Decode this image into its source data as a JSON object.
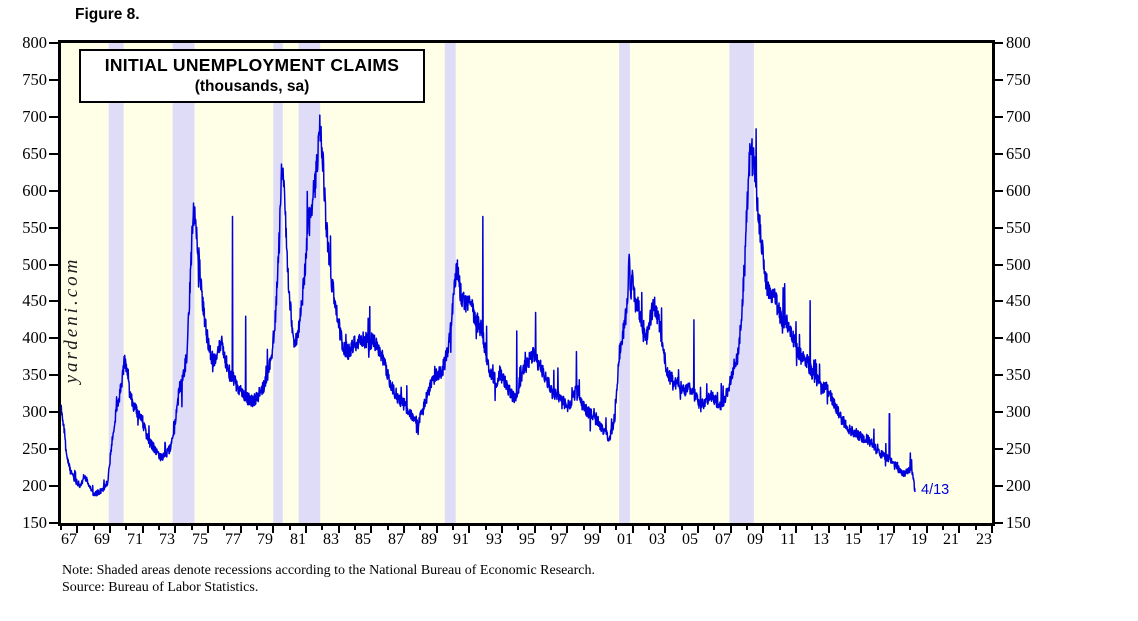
{
  "figure_label": "Figure 8.",
  "watermark": "yardeni.com",
  "notes": {
    "line1": "Note: Shaded areas denote recessions according to the National Bureau of Economic Research.",
    "line2": "Source: Bureau of Labor Statistics."
  },
  "colors": {
    "line": "#0000dc",
    "recession_band": "#dedcf6",
    "plot_background": "#ffffe7",
    "frame": "#000000",
    "text": "#000000",
    "end_label": "#0000dc"
  },
  "chart_data": {
    "type": "line",
    "title": "INITIAL UNEMPLOYMENT CLAIMS",
    "subtitle": "(thousands, sa)",
    "series_name": "Initial unemployment claims, weekly, thousands, seasonally adjusted",
    "x_range": [
      1967.0,
      2024.0
    ],
    "y_range": [
      150,
      800
    ],
    "y_ticks": [
      150,
      200,
      250,
      300,
      350,
      400,
      450,
      500,
      550,
      600,
      650,
      700,
      750,
      800
    ],
    "x_tick_labels": [
      "67",
      "69",
      "71",
      "73",
      "75",
      "77",
      "79",
      "81",
      "83",
      "85",
      "87",
      "89",
      "91",
      "93",
      "95",
      "97",
      "99",
      "01",
      "03",
      "05",
      "07",
      "09",
      "11",
      "13",
      "15",
      "17",
      "19",
      "21",
      "23"
    ],
    "x_tick_label_start_year": 1967,
    "grid": false,
    "legend": "none",
    "recessions": [
      [
        1969.92,
        1970.83
      ],
      [
        1973.83,
        1975.17
      ],
      [
        1980.0,
        1980.58
      ],
      [
        1981.55,
        1982.87
      ],
      [
        1990.5,
        1991.17
      ],
      [
        2001.17,
        2001.83
      ],
      [
        2007.92,
        2009.42
      ]
    ],
    "anchors": [
      [
        1967.0,
        310
      ],
      [
        1967.15,
        285
      ],
      [
        1967.35,
        240
      ],
      [
        1967.6,
        218
      ],
      [
        1967.9,
        207
      ],
      [
        1968.2,
        200
      ],
      [
        1968.45,
        215
      ],
      [
        1968.7,
        200
      ],
      [
        1969.0,
        188
      ],
      [
        1969.3,
        192
      ],
      [
        1969.6,
        196
      ],
      [
        1969.85,
        205
      ],
      [
        1970.1,
        255
      ],
      [
        1970.4,
        305
      ],
      [
        1970.65,
        330
      ],
      [
        1970.9,
        372
      ],
      [
        1971.05,
        360
      ],
      [
        1971.3,
        318
      ],
      [
        1971.6,
        302
      ],
      [
        1971.9,
        292
      ],
      [
        1972.2,
        272
      ],
      [
        1972.5,
        258
      ],
      [
        1972.8,
        248
      ],
      [
        1973.1,
        238
      ],
      [
        1973.4,
        242
      ],
      [
        1973.7,
        252
      ],
      [
        1973.95,
        278
      ],
      [
        1974.2,
        330
      ],
      [
        1974.45,
        342
      ],
      [
        1974.7,
        378
      ],
      [
        1974.9,
        470
      ],
      [
        1975.08,
        572
      ],
      [
        1975.2,
        560
      ],
      [
        1975.35,
        535
      ],
      [
        1975.55,
        478
      ],
      [
        1975.75,
        432
      ],
      [
        1975.95,
        402
      ],
      [
        1976.15,
        378
      ],
      [
        1976.4,
        368
      ],
      [
        1976.6,
        382
      ],
      [
        1976.85,
        392
      ],
      [
        1977.1,
        368
      ],
      [
        1977.35,
        352
      ],
      [
        1977.6,
        342
      ],
      [
        1977.9,
        332
      ],
      [
        1978.15,
        322
      ],
      [
        1978.45,
        318
      ],
      [
        1978.75,
        315
      ],
      [
        1979.05,
        322
      ],
      [
        1979.35,
        332
      ],
      [
        1979.65,
        352
      ],
      [
        1979.9,
        378
      ],
      [
        1980.1,
        420
      ],
      [
        1980.3,
        500
      ],
      [
        1980.5,
        620
      ],
      [
        1980.58,
        635
      ],
      [
        1980.7,
        592
      ],
      [
        1980.85,
        505
      ],
      [
        1981.0,
        452
      ],
      [
        1981.2,
        402
      ],
      [
        1981.35,
        393
      ],
      [
        1981.55,
        415
      ],
      [
        1981.75,
        452
      ],
      [
        1981.95,
        492
      ],
      [
        1982.15,
        558
      ],
      [
        1982.35,
        582
      ],
      [
        1982.55,
        608
      ],
      [
        1982.7,
        642
      ],
      [
        1982.82,
        688
      ],
      [
        1982.92,
        672
      ],
      [
        1983.05,
        635
      ],
      [
        1983.2,
        565
      ],
      [
        1983.4,
        512
      ],
      [
        1983.6,
        472
      ],
      [
        1983.8,
        448
      ],
      [
        1984.05,
        412
      ],
      [
        1984.3,
        388
      ],
      [
        1984.6,
        382
      ],
      [
        1984.9,
        392
      ],
      [
        1985.2,
        396
      ],
      [
        1985.5,
        400
      ],
      [
        1985.8,
        394
      ],
      [
        1986.1,
        398
      ],
      [
        1986.4,
        386
      ],
      [
        1986.7,
        374
      ],
      [
        1987.0,
        350
      ],
      [
        1987.3,
        331
      ],
      [
        1987.6,
        321
      ],
      [
        1987.9,
        314
      ],
      [
        1988.2,
        304
      ],
      [
        1988.5,
        295
      ],
      [
        1988.85,
        284
      ],
      [
        1989.15,
        302
      ],
      [
        1989.45,
        326
      ],
      [
        1989.75,
        341
      ],
      [
        1990.05,
        351
      ],
      [
        1990.35,
        357
      ],
      [
        1990.55,
        372
      ],
      [
        1990.75,
        397
      ],
      [
        1990.95,
        432
      ],
      [
        1991.1,
        468
      ],
      [
        1991.25,
        498
      ],
      [
        1991.45,
        462
      ],
      [
        1991.7,
        448
      ],
      [
        1991.95,
        450
      ],
      [
        1992.2,
        438
      ],
      [
        1992.45,
        424
      ],
      [
        1992.7,
        414
      ],
      [
        1992.95,
        388
      ],
      [
        1993.15,
        364
      ],
      [
        1993.4,
        349
      ],
      [
        1993.65,
        341
      ],
      [
        1993.9,
        351
      ],
      [
        1994.2,
        339
      ],
      [
        1994.5,
        326
      ],
      [
        1994.8,
        321
      ],
      [
        1995.1,
        341
      ],
      [
        1995.4,
        361
      ],
      [
        1995.7,
        371
      ],
      [
        1995.95,
        379
      ],
      [
        1996.2,
        366
      ],
      [
        1996.5,
        356
      ],
      [
        1996.8,
        341
      ],
      [
        1997.1,
        326
      ],
      [
        1997.4,
        321
      ],
      [
        1997.7,
        316
      ],
      [
        1998.0,
        307
      ],
      [
        1998.3,
        317
      ],
      [
        1998.6,
        331
      ],
      [
        1998.9,
        311
      ],
      [
        1999.2,
        301
      ],
      [
        1999.5,
        296
      ],
      [
        1999.8,
        291
      ],
      [
        2000.1,
        278
      ],
      [
        2000.35,
        272
      ],
      [
        2000.55,
        264
      ],
      [
        2000.8,
        282
      ],
      [
        2001.0,
        322
      ],
      [
        2001.2,
        382
      ],
      [
        2001.45,
        412
      ],
      [
        2001.65,
        442
      ],
      [
        2001.78,
        508
      ],
      [
        2001.88,
        458
      ],
      [
        2002.0,
        488
      ],
      [
        2002.15,
        448
      ],
      [
        2002.35,
        442
      ],
      [
        2002.6,
        416
      ],
      [
        2002.85,
        402
      ],
      [
        2003.1,
        428
      ],
      [
        2003.3,
        448
      ],
      [
        2003.55,
        428
      ],
      [
        2003.8,
        398
      ],
      [
        2004.05,
        362
      ],
      [
        2004.3,
        347
      ],
      [
        2004.6,
        341
      ],
      [
        2004.9,
        336
      ],
      [
        2005.2,
        331
      ],
      [
        2005.5,
        332
      ],
      [
        2005.85,
        322
      ],
      [
        2006.15,
        308
      ],
      [
        2006.45,
        312
      ],
      [
        2006.75,
        321
      ],
      [
        2007.05,
        318
      ],
      [
        2007.35,
        309
      ],
      [
        2007.65,
        319
      ],
      [
        2007.95,
        341
      ],
      [
        2008.2,
        362
      ],
      [
        2008.45,
        378
      ],
      [
        2008.65,
        425
      ],
      [
        2008.85,
        488
      ],
      [
        2009.0,
        582
      ],
      [
        2009.15,
        638
      ],
      [
        2009.25,
        658
      ],
      [
        2009.4,
        648
      ],
      [
        2009.55,
        612
      ],
      [
        2009.75,
        558
      ],
      [
        2009.95,
        518
      ],
      [
        2010.15,
        478
      ],
      [
        2010.4,
        464
      ],
      [
        2010.65,
        459
      ],
      [
        2010.9,
        442
      ],
      [
        2011.15,
        418
      ],
      [
        2011.4,
        421
      ],
      [
        2011.65,
        413
      ],
      [
        2011.9,
        399
      ],
      [
        2012.15,
        379
      ],
      [
        2012.45,
        373
      ],
      [
        2012.75,
        366
      ],
      [
        2013.0,
        352
      ],
      [
        2013.3,
        344
      ],
      [
        2013.6,
        331
      ],
      [
        2013.9,
        333
      ],
      [
        2014.2,
        319
      ],
      [
        2014.5,
        304
      ],
      [
        2014.8,
        292
      ],
      [
        2015.1,
        281
      ],
      [
        2015.4,
        274
      ],
      [
        2015.7,
        271
      ],
      [
        2016.0,
        266
      ],
      [
        2016.35,
        264
      ],
      [
        2016.7,
        256
      ],
      [
        2017.0,
        246
      ],
      [
        2017.35,
        241
      ],
      [
        2017.7,
        238
      ],
      [
        2018.0,
        231
      ],
      [
        2018.3,
        222
      ],
      [
        2018.6,
        216
      ],
      [
        2018.9,
        221
      ],
      [
        2019.05,
        226
      ],
      [
        2019.18,
        212
      ],
      [
        2019.28,
        192
      ]
    ],
    "spikes": [
      [
        1977.5,
        565
      ],
      [
        1978.3,
        430
      ],
      [
        1985.9,
        443
      ],
      [
        1992.82,
        565
      ],
      [
        1994.9,
        410
      ],
      [
        1996.05,
        435
      ],
      [
        1998.55,
        382
      ],
      [
        2005.75,
        425
      ],
      [
        2011.3,
        474
      ],
      [
        2012.87,
        451
      ],
      [
        2017.72,
        298
      ]
    ],
    "last_point": {
      "label": "4/13",
      "year": 2019.28,
      "value": 192
    },
    "noise": {
      "seed": 11,
      "base": 2,
      "slope": 0.04,
      "weeks_per_year": 52
    }
  }
}
